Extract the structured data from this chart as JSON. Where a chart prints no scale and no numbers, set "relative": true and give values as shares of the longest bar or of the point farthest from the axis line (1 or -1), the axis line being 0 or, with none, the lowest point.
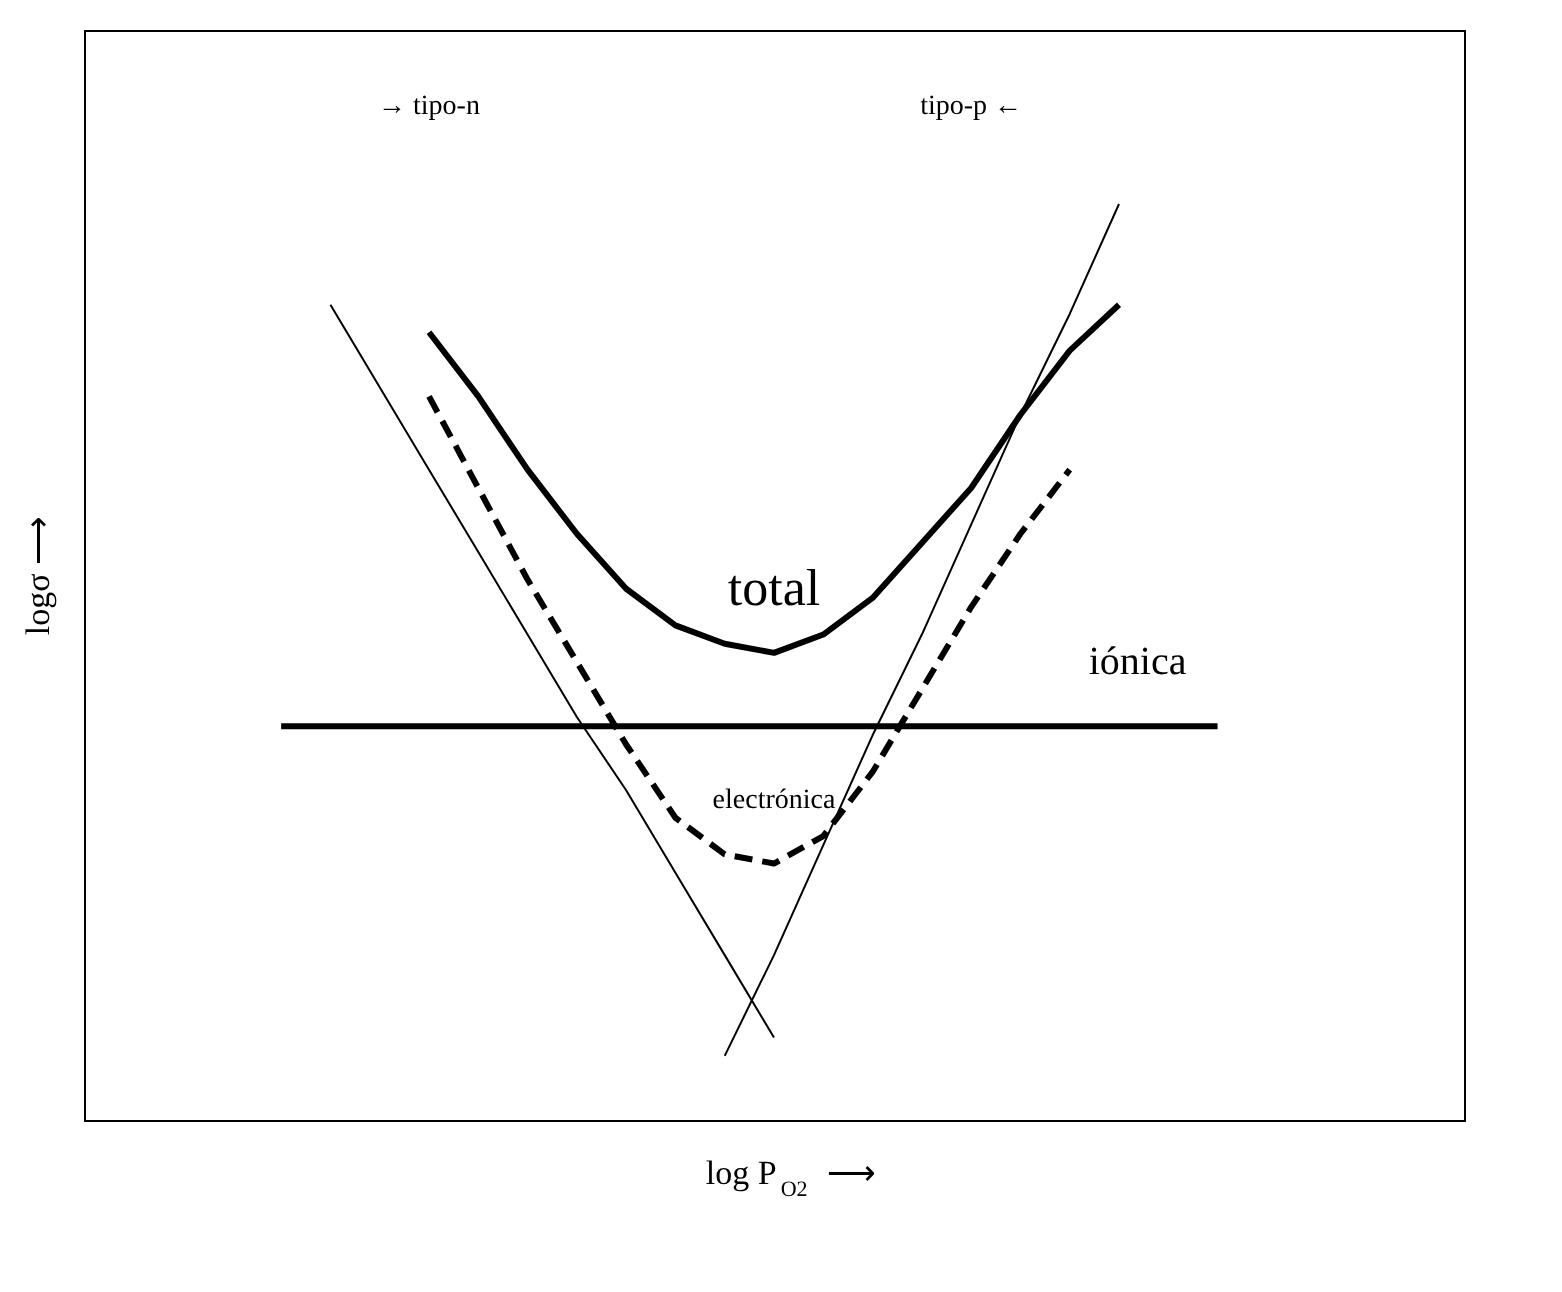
{
  "chart_data": {
    "type": "line",
    "relative": true,
    "xlabel": "log P$_{O2}$  ⟶",
    "ylabel": "logσ  ⟶",
    "categories": [
      null,
      null,
      null,
      null,
      null,
      null,
      null,
      null,
      null,
      null,
      null,
      null,
      null,
      null,
      null,
      null,
      null,
      null,
      null,
      null,
      null,
      null,
      null,
      null,
      null,
      null,
      null,
      null,
      null
    ],
    "series": [
      {
        "color": "#000000",
        "line_style": "solid",
        "values": [
          null,
          null,
          null,
          null,
          null,
          0.89,
          0.8,
          0.71,
          0.62,
          0.53,
          0.44,
          0.36,
          0.27,
          0.18,
          0.09,
          null,
          null,
          null,
          null,
          null,
          null,
          null,
          null,
          null,
          null,
          null,
          null,
          null,
          null
        ]
      },
      {
        "color": "#000000",
        "line_style": "solid",
        "values": [
          null,
          null,
          null,
          null,
          null,
          null,
          null,
          null,
          null,
          null,
          null,
          null,
          null,
          0.07,
          0.18,
          0.3,
          0.42,
          0.53,
          0.65,
          0.77,
          0.88,
          1.0,
          null,
          null,
          null,
          null,
          null,
          null,
          null
        ]
      },
      {
        "name": "iónica",
        "color": "#000000",
        "line_style": "solid",
        "values": [
          null,
          null,
          null,
          null,
          0.43,
          0.43,
          0.43,
          0.43,
          0.43,
          0.43,
          0.43,
          0.43,
          0.43,
          0.43,
          0.43,
          0.43,
          0.43,
          0.43,
          0.43,
          0.43,
          0.43,
          0.43,
          0.43,
          0.43,
          null,
          null,
          null,
          null,
          null
        ]
      },
      {
        "name": "total",
        "color": "#000000",
        "line_style": "solid",
        "values": [
          null,
          null,
          null,
          null,
          null,
          null,
          null,
          0.86,
          0.79,
          0.71,
          0.64,
          0.58,
          0.54,
          0.52,
          0.51,
          0.53,
          0.57,
          0.63,
          0.69,
          0.77,
          0.84,
          0.89,
          null,
          null,
          null,
          null,
          null,
          null,
          null
        ]
      },
      {
        "name": "electrónica",
        "color": "#000000",
        "line_style": "dashed",
        "values": [
          null,
          null,
          null,
          null,
          null,
          null,
          null,
          0.79,
          0.69,
          0.59,
          0.5,
          0.41,
          0.33,
          0.29,
          0.28,
          0.31,
          0.38,
          0.47,
          0.56,
          0.64,
          0.71,
          null,
          null,
          null,
          null,
          null,
          null,
          null,
          null
        ]
      }
    ],
    "annotations": [
      "→ tipo-n",
      "tipo-p ←"
    ]
  }
}
